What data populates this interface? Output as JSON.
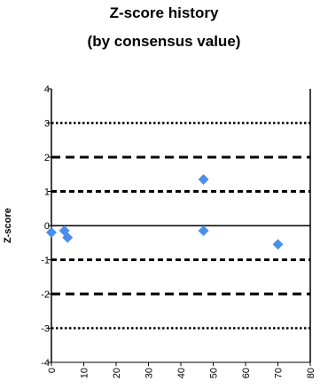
{
  "chart_data": {
    "type": "scatter",
    "title_lines": [
      "Z-score history",
      "(by consensus value)"
    ],
    "xlabel": "",
    "ylabel": "Z-score",
    "xlim": [
      0,
      80
    ],
    "ylim": [
      -4,
      4
    ],
    "x_ticks": [
      "0",
      "10",
      "20",
      "30",
      "40",
      "50",
      "60",
      "70",
      "80"
    ],
    "y_ticks": [
      "4",
      "3",
      "2",
      "1",
      "0",
      "-1",
      "-2",
      "-3",
      "-4"
    ],
    "reference_lines": [
      {
        "y": 3,
        "style": "dotted"
      },
      {
        "y": 2,
        "style": "dashed"
      },
      {
        "y": 1,
        "style": "short-dashed"
      },
      {
        "y": 0,
        "style": "solid"
      },
      {
        "y": -1,
        "style": "short-dashed"
      },
      {
        "y": -2,
        "style": "dashed"
      },
      {
        "y": -3,
        "style": "dotted"
      }
    ],
    "marker_color": "#4a90e8",
    "marker_shape": "diamond",
    "points": [
      {
        "x": 0,
        "y": -0.2
      },
      {
        "x": 4,
        "y": -0.15
      },
      {
        "x": 5,
        "y": -0.35
      },
      {
        "x": 47,
        "y": 1.35
      },
      {
        "x": 47,
        "y": -0.15
      },
      {
        "x": 70,
        "y": -0.55
      }
    ]
  }
}
